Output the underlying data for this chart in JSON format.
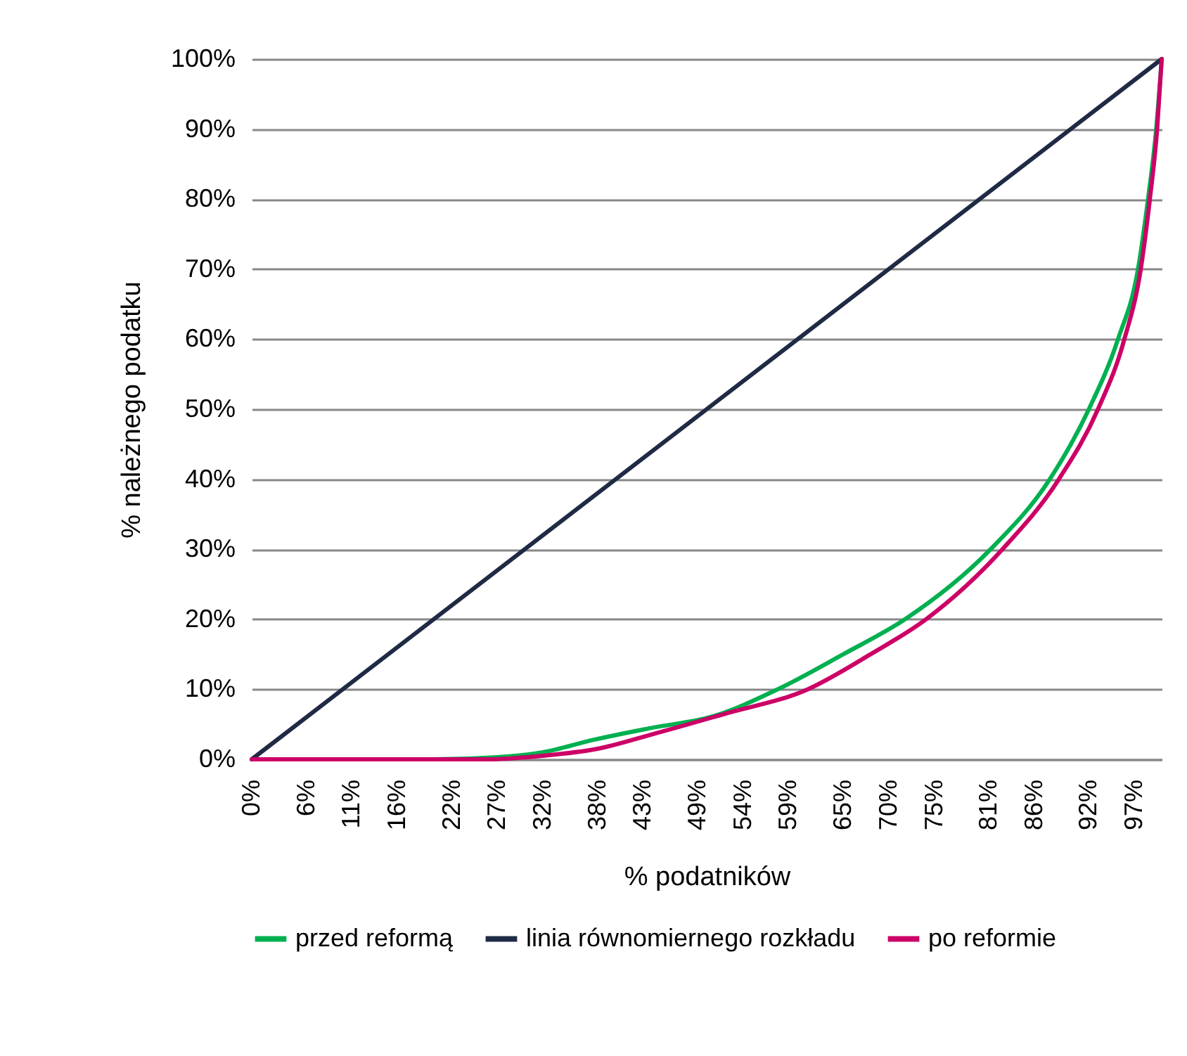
{
  "chart_data": {
    "type": "line",
    "xlabel": "% podatników",
    "ylabel": "% należnego podatku",
    "xlim": [
      0,
      100
    ],
    "ylim": [
      0,
      100
    ],
    "xticks": [
      {
        "value": 0,
        "label": "0%"
      },
      {
        "value": 6,
        "label": "6%"
      },
      {
        "value": 11,
        "label": "11%"
      },
      {
        "value": 16,
        "label": "16%"
      },
      {
        "value": 22,
        "label": "22%"
      },
      {
        "value": 27,
        "label": "27%"
      },
      {
        "value": 32,
        "label": "32%"
      },
      {
        "value": 38,
        "label": "38%"
      },
      {
        "value": 43,
        "label": "43%"
      },
      {
        "value": 49,
        "label": "49%"
      },
      {
        "value": 54,
        "label": "54%"
      },
      {
        "value": 59,
        "label": "59%"
      },
      {
        "value": 65,
        "label": "65%"
      },
      {
        "value": 70,
        "label": "70%"
      },
      {
        "value": 75,
        "label": "75%"
      },
      {
        "value": 81,
        "label": "81%"
      },
      {
        "value": 86,
        "label": "86%"
      },
      {
        "value": 92,
        "label": "92%"
      },
      {
        "value": 97,
        "label": "97%"
      }
    ],
    "yticks": [
      {
        "value": 0,
        "label": "0%"
      },
      {
        "value": 10,
        "label": "10%"
      },
      {
        "value": 20,
        "label": "20%"
      },
      {
        "value": 30,
        "label": "30%"
      },
      {
        "value": 40,
        "label": "40%"
      },
      {
        "value": 50,
        "label": "50%"
      },
      {
        "value": 60,
        "label": "60%"
      },
      {
        "value": 70,
        "label": "70%"
      },
      {
        "value": 80,
        "label": "80%"
      },
      {
        "value": 90,
        "label": "90%"
      },
      {
        "value": 100,
        "label": "100%"
      }
    ],
    "grid": "y",
    "legend": "bottom",
    "series": [
      {
        "name": "przed reformą",
        "color": "#00b050",
        "x": [
          0,
          20,
          27,
          32,
          37.6,
          44,
          50.6,
          57.8,
          65,
          71.8,
          81.2,
          87.7,
          92,
          95.2,
          97.4,
          98.5,
          99.4,
          100
        ],
        "values": [
          0,
          0,
          0.3,
          1,
          2.8,
          4.5,
          6.1,
          10,
          15,
          20,
          30,
          40,
          50,
          60,
          70,
          80,
          90,
          100
        ]
      },
      {
        "name": "linia równomiernego rozkładu",
        "color": "#1f2a44",
        "x": [
          0,
          100
        ],
        "values": [
          0,
          100
        ]
      },
      {
        "name": "po reformie",
        "color": "#cc0066",
        "x": [
          0,
          25.9,
          32,
          38,
          44.1,
          52,
          61.1,
          68,
          74.1,
          82.5,
          88.7,
          93,
          95.9,
          97.7,
          98.7,
          99.5,
          100
        ],
        "values": [
          0,
          0,
          0.5,
          1.5,
          3.6,
          6.5,
          10,
          15,
          20,
          30,
          40,
          50,
          60,
          70,
          80,
          90,
          100
        ]
      }
    ]
  }
}
